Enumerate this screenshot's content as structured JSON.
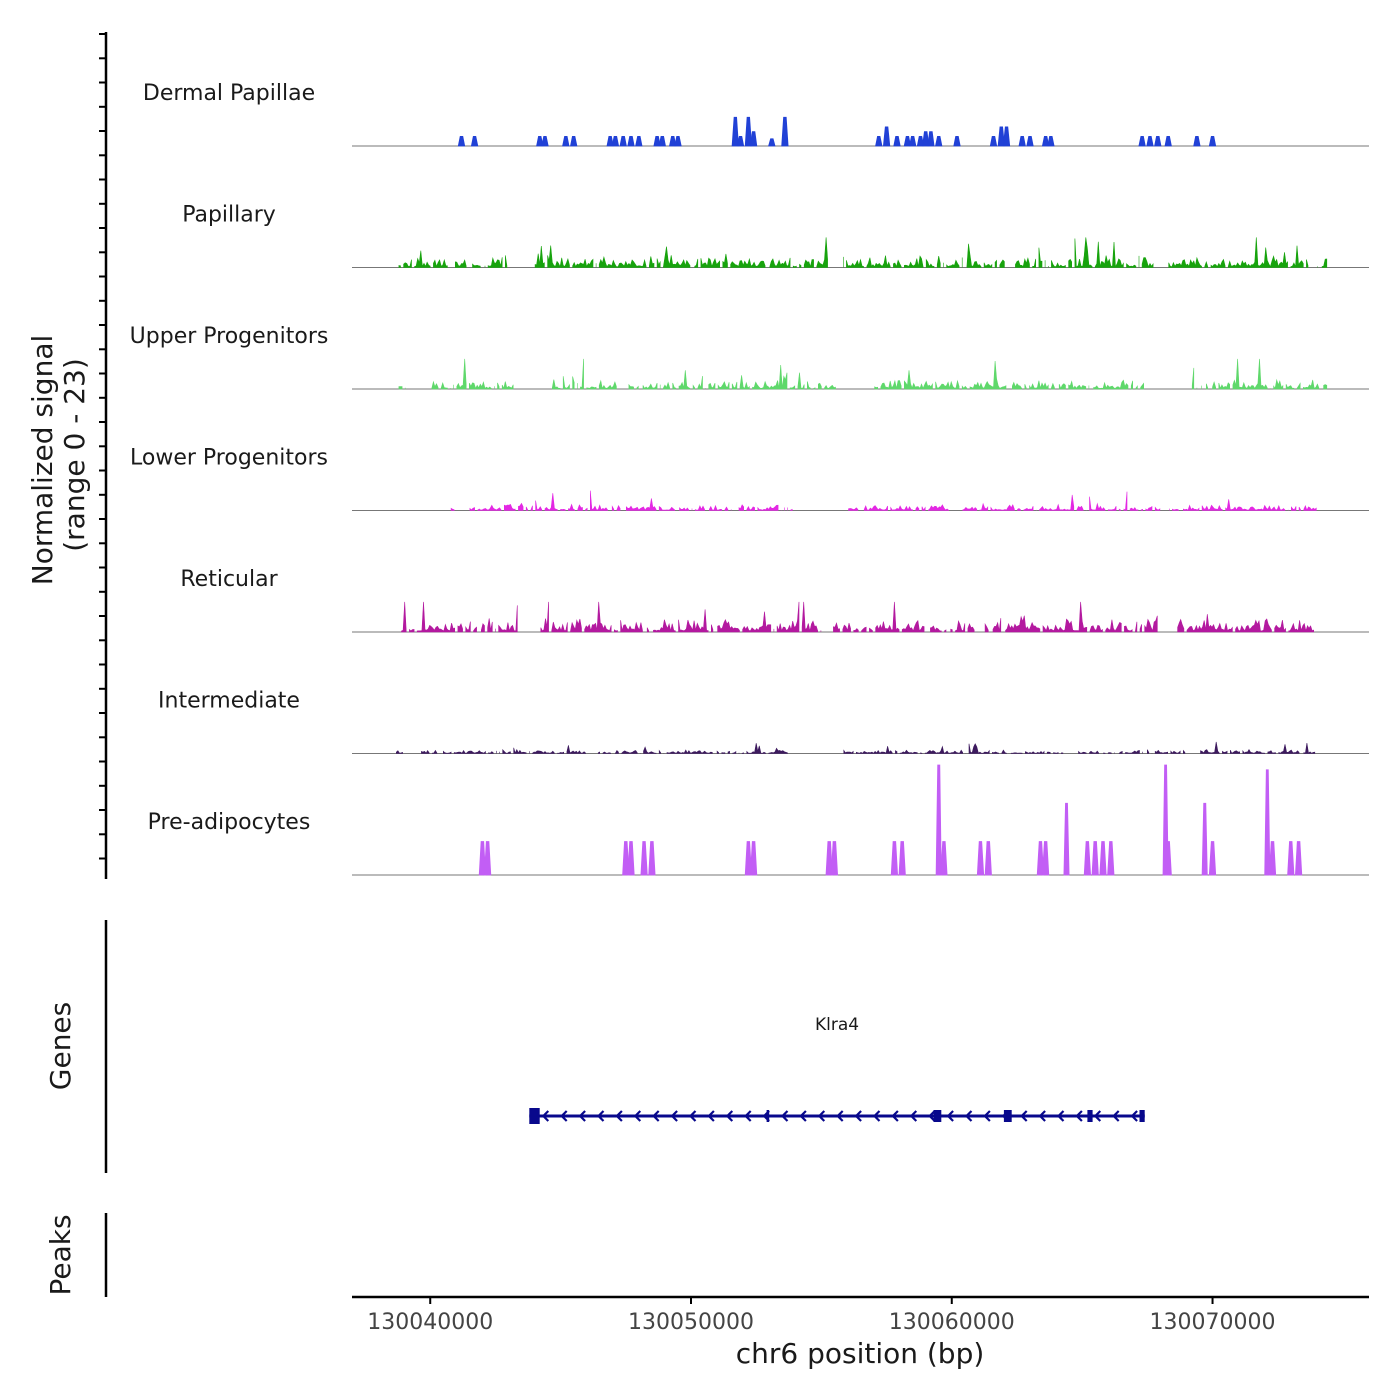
{
  "chart_data": {
    "type": "area",
    "title": "",
    "chromosome": "chr6",
    "xlabel": "chr6 position (bp)",
    "ylabel": "Normalized signal",
    "ylabel_range": "(range 0 - 23)",
    "xlim": [
      130037000,
      130076000
    ],
    "ylim": [
      0,
      23
    ],
    "x_ticks": [
      130040000,
      130050000,
      130060000,
      130070000
    ],
    "x_tick_labels": [
      "130040000",
      "130050000",
      "130060000",
      "130070000"
    ],
    "series": [
      {
        "name": "Dermal Papillae",
        "color": "#2141d6",
        "style": "spikes",
        "peaks": [
          [
            130041200,
            2
          ],
          [
            130041700,
            2
          ],
          [
            130044200,
            2
          ],
          [
            130044400,
            2
          ],
          [
            130045200,
            2
          ],
          [
            130045500,
            2
          ],
          [
            130046900,
            2
          ],
          [
            130047100,
            2
          ],
          [
            130047400,
            2
          ],
          [
            130047700,
            2
          ],
          [
            130048000,
            2
          ],
          [
            130048700,
            2
          ],
          [
            130048900,
            2
          ],
          [
            130049300,
            2
          ],
          [
            130049500,
            2
          ],
          [
            130051700,
            6
          ],
          [
            130051900,
            2
          ],
          [
            130052200,
            6
          ],
          [
            130052400,
            3
          ],
          [
            130053100,
            1.5
          ],
          [
            130053600,
            6
          ],
          [
            130057200,
            2
          ],
          [
            130057500,
            4
          ],
          [
            130057900,
            2
          ],
          [
            130058300,
            2
          ],
          [
            130058500,
            2
          ],
          [
            130058800,
            2
          ],
          [
            130059000,
            3
          ],
          [
            130059200,
            3
          ],
          [
            130059500,
            2
          ],
          [
            130060200,
            2
          ],
          [
            130061600,
            2
          ],
          [
            130061900,
            4
          ],
          [
            130062100,
            4
          ],
          [
            130062700,
            2
          ],
          [
            130063000,
            2
          ],
          [
            130063600,
            2
          ],
          [
            130063800,
            2
          ],
          [
            130067300,
            2
          ],
          [
            130067600,
            2
          ],
          [
            130067900,
            2
          ],
          [
            130068300,
            2
          ],
          [
            130069400,
            2
          ],
          [
            130070000,
            2
          ]
        ]
      },
      {
        "name": "Papillary",
        "color": "#17a30d",
        "style": "noise",
        "start": 130038800,
        "end": 130074400,
        "base": 0.8,
        "peakiness": 1.6,
        "seed": 11,
        "gaps": [
          [
            130041400,
            130041600
          ],
          [
            130043000,
            130044000
          ],
          [
            130055300,
            130055800
          ],
          [
            130062100,
            130062400
          ],
          [
            130067900,
            130068300
          ],
          [
            130073700,
            130074000
          ]
        ]
      },
      {
        "name": "Upper Progenitors",
        "color": "#5fd86b",
        "style": "noise",
        "start": 130038800,
        "end": 130074400,
        "base": 0.6,
        "peakiness": 2.2,
        "seed": 23,
        "gaps": [
          [
            130039100,
            130040000
          ],
          [
            130043200,
            130044600
          ],
          [
            130047200,
            130047600
          ],
          [
            130055600,
            130057000
          ],
          [
            130067400,
            130069200
          ]
        ]
      },
      {
        "name": "Lower Progenitors",
        "color": "#e328e3",
        "style": "noise",
        "start": 130040800,
        "end": 130074000,
        "base": 0.4,
        "peakiness": 2.0,
        "seed": 37,
        "gaps": [
          [
            130041000,
            130041500
          ],
          [
            130047300,
            130047500
          ],
          [
            130051600,
            130051800
          ],
          [
            130054000,
            130056000
          ],
          [
            130059900,
            130060300
          ],
          [
            130068000,
            130068300
          ]
        ]
      },
      {
        "name": "Reticular",
        "color": "#b3199f",
        "style": "noise",
        "start": 130038900,
        "end": 130073900,
        "base": 1.0,
        "peakiness": 2.2,
        "seed": 53,
        "gaps": [
          [
            130043400,
            130044200
          ],
          [
            130055000,
            130055400
          ],
          [
            130060900,
            130061200
          ],
          [
            130067900,
            130068600
          ]
        ]
      },
      {
        "name": "Intermediate",
        "color": "#3d1a5e",
        "style": "noise",
        "start": 130038700,
        "end": 130074000,
        "base": 0.25,
        "peakiness": 1.8,
        "seed": 71,
        "gaps": [
          [
            130039000,
            130039600
          ],
          [
            130046000,
            130046400
          ],
          [
            130053800,
            130055800
          ],
          [
            130064300,
            130064800
          ],
          [
            130069000,
            130069500
          ]
        ]
      },
      {
        "name": "Pre-adipocytes",
        "color": "#c25ef5",
        "style": "spikes",
        "peaks": [
          [
            130042000,
            7
          ],
          [
            130042200,
            7
          ],
          [
            130047500,
            7
          ],
          [
            130047700,
            7
          ],
          [
            130048200,
            7
          ],
          [
            130048500,
            7
          ],
          [
            130052200,
            7
          ],
          [
            130052400,
            7
          ],
          [
            130055300,
            7
          ],
          [
            130055500,
            7
          ],
          [
            130057800,
            7
          ],
          [
            130058100,
            7
          ],
          [
            130059500,
            23
          ],
          [
            130059700,
            7
          ],
          [
            130061100,
            7
          ],
          [
            130061400,
            7
          ],
          [
            130063400,
            7
          ],
          [
            130063600,
            7
          ],
          [
            130064400,
            15
          ],
          [
            130065200,
            7
          ],
          [
            130065500,
            7
          ],
          [
            130065800,
            7
          ],
          [
            130066100,
            7
          ],
          [
            130068200,
            23
          ],
          [
            130068300,
            7
          ],
          [
            130069700,
            15
          ],
          [
            130070000,
            7
          ],
          [
            130072100,
            22
          ],
          [
            130072300,
            7
          ],
          [
            130073000,
            7
          ],
          [
            130073300,
            7
          ]
        ]
      }
    ],
    "panels": [
      "Genes",
      "Peaks"
    ],
    "genes": [
      {
        "name": "Klra4",
        "strand": "-",
        "start": 130043800,
        "end": 130067400,
        "color": "#08088c",
        "exons": [
          [
            130043800,
            130044200
          ],
          [
            130052900,
            130053000
          ],
          [
            130059300,
            130059600
          ],
          [
            130062000,
            130062300
          ],
          [
            130065200,
            130065400
          ],
          [
            130067200,
            130067400
          ]
        ]
      }
    ],
    "peaks": []
  }
}
